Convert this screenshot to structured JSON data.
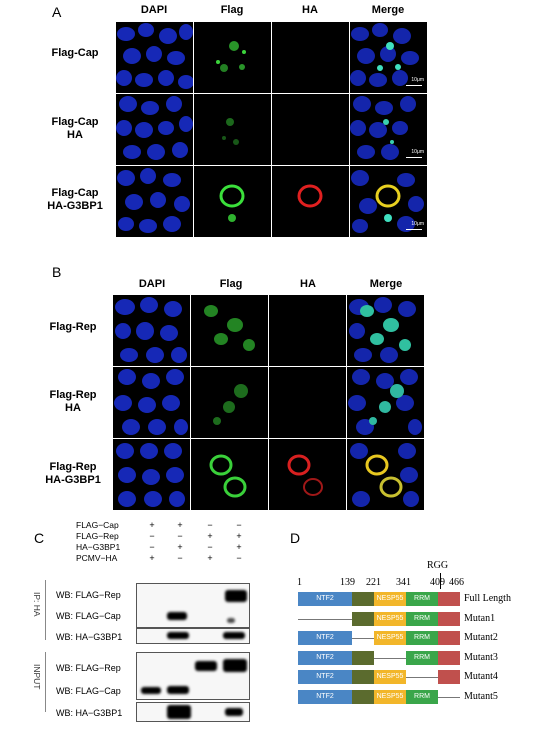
{
  "panelA": {
    "letter": "A",
    "columns": [
      "DAPI",
      "Flag",
      "HA",
      "Merge"
    ],
    "rows": [
      {
        "line1": "Flag-Cap",
        "line2": ""
      },
      {
        "line1": "Flag-Cap",
        "line2": "HA"
      },
      {
        "line1": "Flag-Cap",
        "line2": "HA-G3BP1"
      }
    ],
    "scale": "10μm"
  },
  "panelB": {
    "letter": "B",
    "columns": [
      "DAPI",
      "Flag",
      "HA",
      "Merge"
    ],
    "rows": [
      {
        "line1": "Flag-Rep",
        "line2": ""
      },
      {
        "line1": "Flag-Rep",
        "line2": "HA"
      },
      {
        "line1": "Flag-Rep",
        "line2": "HA-G3BP1"
      }
    ]
  },
  "panelC": {
    "letter": "C",
    "conditions": [
      {
        "label": "FLAG−Cap",
        "signs": [
          "+",
          "+",
          "−",
          "−"
        ]
      },
      {
        "label": "FLAG−Rep",
        "signs": [
          "−",
          "−",
          "+",
          "+"
        ]
      },
      {
        "label": "HA−G3BP1",
        "signs": [
          "−",
          "+",
          "−",
          "+"
        ]
      },
      {
        "label": "PCMV−HA",
        "signs": [
          "+",
          "−",
          "+",
          "−"
        ]
      }
    ],
    "ip_label": "IP: HA",
    "input_label": "INPUT",
    "ip_rows": [
      "WB:  FLAG−Rep",
      "WB:  FLAG−Cap",
      "WB: HA−G3BP1"
    ],
    "input_rows": [
      "WB:  FLAG−Rep",
      "WB:  FLAG−Cap",
      "WB: HA−G3BP1"
    ]
  },
  "panelD": {
    "letter": "D",
    "rgg": "RGG",
    "positions": [
      "1",
      "139",
      "221",
      "341",
      "409",
      "466"
    ],
    "domains": {
      "ntf2": "NTF2",
      "nesp": "NESP55",
      "rrm": "RRM"
    },
    "constructs": [
      "Full Length",
      "Mutan1",
      "Mutant2",
      "Mutant3",
      "Mutant4",
      "Mutant5"
    ],
    "colors": {
      "ntf2": "#4a86c5",
      "acid": "#5b6b2e",
      "nesp": "#f2b62a",
      "rrm": "#3aa64a",
      "rgg": "#c0504d"
    }
  }
}
